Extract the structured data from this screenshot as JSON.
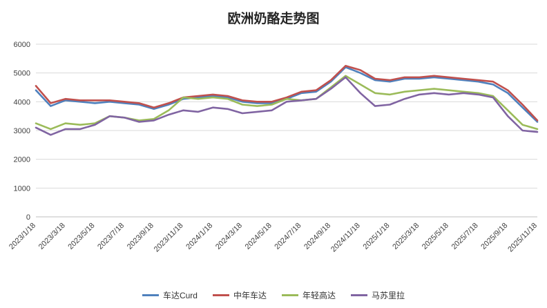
{
  "chart_data": {
    "type": "line",
    "title": "欧洲奶酪走势图",
    "xlabel": "",
    "ylabel": "",
    "ylim": [
      0,
      6000
    ],
    "y_ticks": [
      0,
      1000,
      2000,
      3000,
      4000,
      5000,
      6000
    ],
    "grid": true,
    "grid_color": "#d9d9d9",
    "axis_line_color": "#bfbfbf",
    "legend_position": "bottom",
    "x_tick_step": 2,
    "x": [
      "2023/1/18",
      "2023/2/18",
      "2023/3/18",
      "2023/4/18",
      "2023/5/18",
      "2023/6/18",
      "2023/7/18",
      "2023/8/18",
      "2023/9/18",
      "2023/10/18",
      "2023/11/18",
      "2023/12/18",
      "2024/1/18",
      "2024/2/18",
      "2024/3/18",
      "2024/4/18",
      "2024/5/18",
      "2024/6/18",
      "2024/7/18",
      "2024/8/18",
      "2024/9/18",
      "2024/10/18",
      "2024/11/18",
      "2024/12/18",
      "2025/1/18",
      "2025/2/18",
      "2025/3/18",
      "2025/4/18",
      "2025/5/18",
      "2025/6/18",
      "2025/7/18",
      "2025/8/18",
      "2025/9/18",
      "2025/10/18",
      "2025/11/18"
    ],
    "x_tick_labels": [
      "2023/1/18",
      "2023/3/18",
      "2023/5/18",
      "2023/7/18",
      "2023/9/18",
      "2023/11/18",
      "2024/1/18",
      "2024/3/18",
      "2024/5/18",
      "2024/7/18",
      "2024/9/18",
      "2024/11/18",
      "2025/1/18",
      "2025/3/18",
      "2025/5/18",
      "2025/7/18",
      "2025/9/18",
      "2025/11/18"
    ],
    "series": [
      {
        "name": "车达Curd",
        "color": "#4F81BD",
        "values": [
          4400,
          3850,
          4050,
          4000,
          3950,
          4000,
          3950,
          3900,
          3750,
          3900,
          4100,
          4150,
          4200,
          4150,
          4000,
          3950,
          3950,
          4100,
          4300,
          4350,
          4700,
          5200,
          5000,
          4750,
          4700,
          4800,
          4800,
          4850,
          4800,
          4750,
          4700,
          4600,
          4300,
          3800,
          3300
        ]
      },
      {
        "name": "中年车达",
        "color": "#C0504D",
        "values": [
          4550,
          3950,
          4100,
          4050,
          4050,
          4050,
          4000,
          3950,
          3800,
          3950,
          4150,
          4200,
          4250,
          4200,
          4050,
          4000,
          4000,
          4150,
          4350,
          4400,
          4750,
          5250,
          5100,
          4800,
          4750,
          4850,
          4850,
          4900,
          4850,
          4800,
          4750,
          4700,
          4400,
          3900,
          3350
        ]
      },
      {
        "name": "年轻高达",
        "color": "#9BBB59",
        "values": [
          3250,
          3050,
          3250,
          3200,
          3250,
          3500,
          3450,
          3350,
          3400,
          3700,
          4150,
          4100,
          4150,
          4100,
          3900,
          3850,
          3900,
          4100,
          4050,
          4100,
          4500,
          4900,
          4600,
          4300,
          4250,
          4350,
          4400,
          4450,
          4400,
          4350,
          4300,
          4200,
          3700,
          3200,
          3050
        ]
      },
      {
        "name": "马苏里拉",
        "color": "#8064A2",
        "values": [
          3100,
          2850,
          3050,
          3050,
          3200,
          3500,
          3450,
          3300,
          3350,
          3550,
          3700,
          3650,
          3800,
          3750,
          3600,
          3650,
          3700,
          4000,
          4050,
          4100,
          4450,
          4850,
          4300,
          3850,
          3900,
          4100,
          4250,
          4300,
          4250,
          4300,
          4250,
          4150,
          3500,
          3000,
          2950
        ]
      }
    ]
  }
}
